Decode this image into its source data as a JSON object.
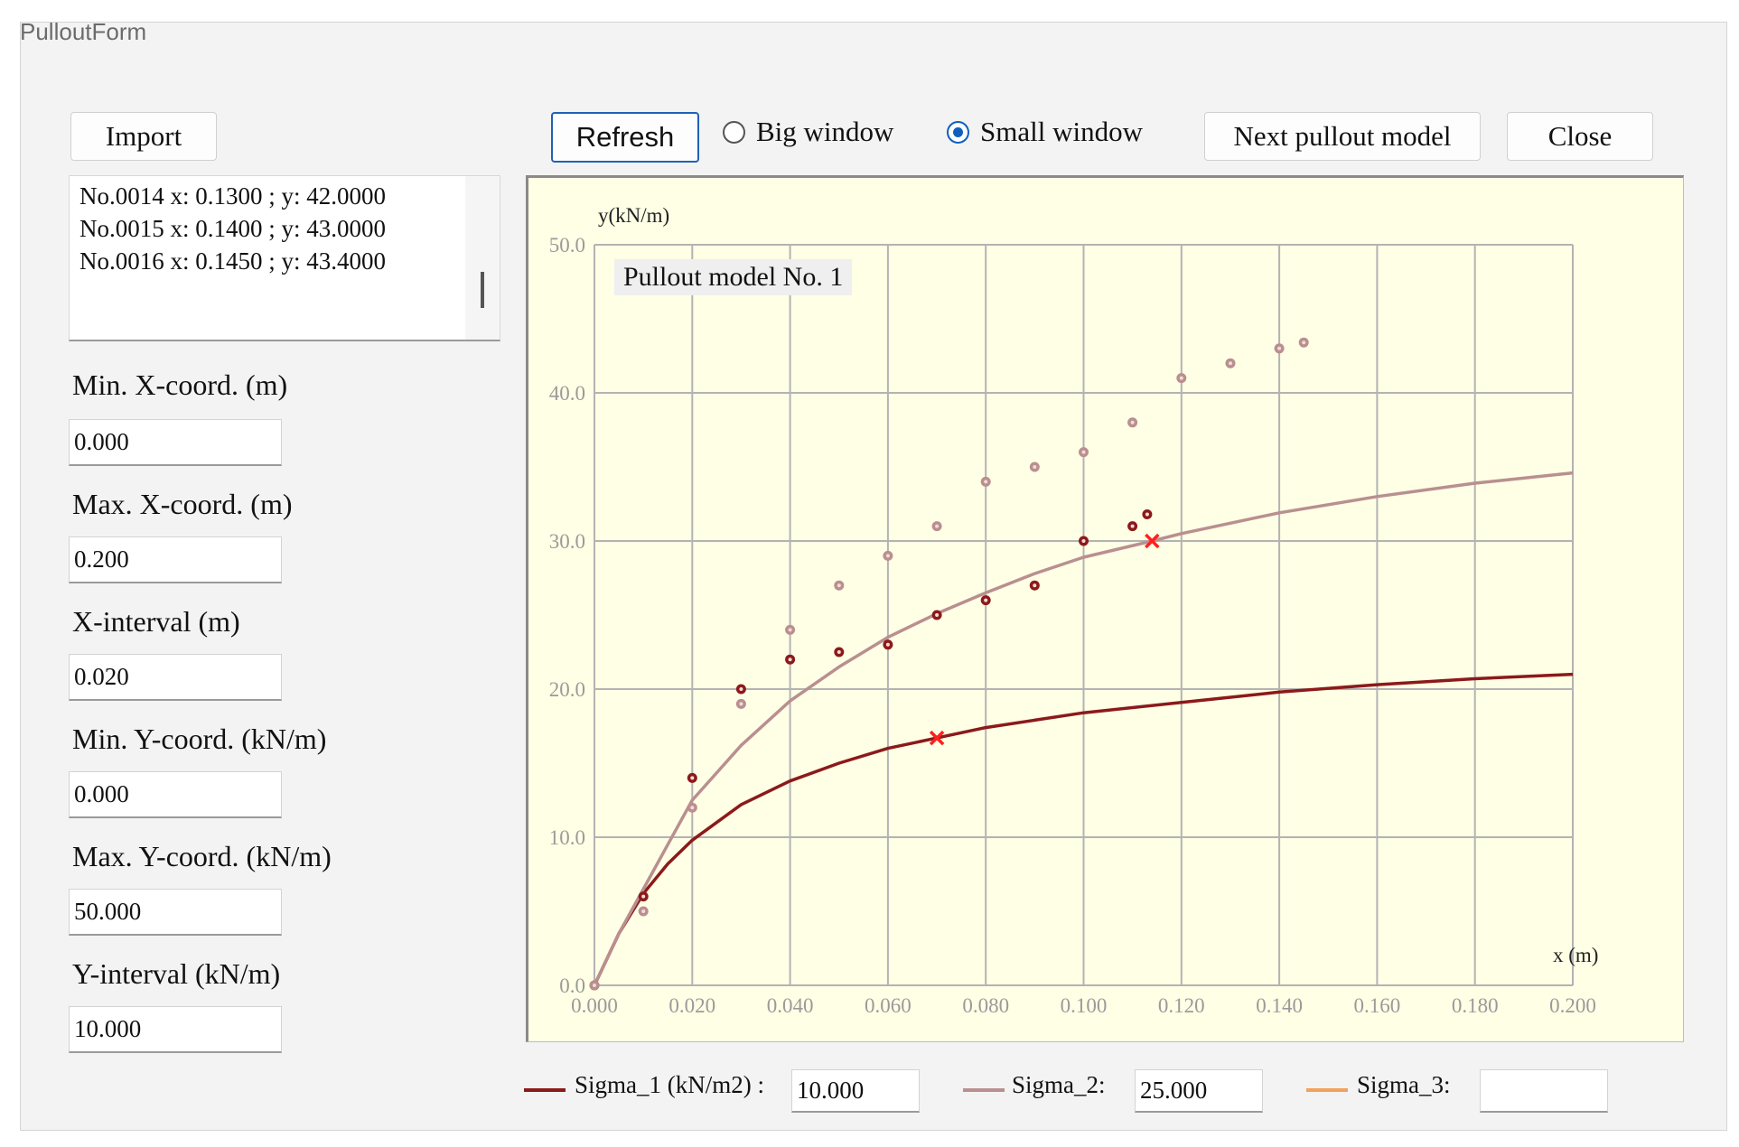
{
  "window": {
    "title": "PulloutForm"
  },
  "toolbar": {
    "import_label": "Import",
    "refresh_label": "Refresh",
    "big_window_label": "Big window",
    "small_window_label": "Small window",
    "selected_view": "Small window",
    "next_model_label": "Next pullout model",
    "close_label": "Close"
  },
  "data_list": {
    "lines": [
      "No.0014 x: 0.1300 ; y: 42.0000",
      "No.0015 x: 0.1400 ; y: 43.0000",
      "No.0016 x: 0.1450 ; y: 43.4000"
    ]
  },
  "settings": {
    "min_x_label": "Min. X-coord.  (m)",
    "min_x_value": "0.000",
    "max_x_label": "Max. X-coord.  (m)",
    "max_x_value": "0.200",
    "x_interval_label": "X-interval  (m)",
    "x_interval_value": "0.020",
    "min_y_label": "Min. Y-coord. (kN/m)",
    "min_y_value": "0.000",
    "max_y_label": "Max. Y-coord. (kN/m)",
    "max_y_value": "50.000",
    "y_interval_label": "Y-interval (kN/m)",
    "y_interval_value": "10.000"
  },
  "legend": {
    "sigma1_label": "Sigma_1 (kN/m2) :",
    "sigma1_value": "10.000",
    "sigma2_label": "Sigma_2:",
    "sigma2_value": "25.000",
    "sigma3_label": "Sigma_3:",
    "sigma3_value": ""
  },
  "colors": {
    "sigma1": "#8b1a1a",
    "sigma2": "#b98f8f",
    "sigma3": "#f2a25a",
    "peak_marker": "#ff1f1f",
    "chart_bg": "#ffffe6"
  },
  "chart_data": {
    "type": "scatter",
    "title": "Pullout model No. 1",
    "xlabel": "x (m)",
    "ylabel": "y(kN/m)",
    "xlim": [
      0,
      0.2
    ],
    "ylim": [
      0,
      50
    ],
    "grid": true,
    "x_ticks": [
      "0.000",
      "0.020",
      "0.040",
      "0.060",
      "0.080",
      "0.100",
      "0.120",
      "0.140",
      "0.160",
      "0.180",
      "0.200"
    ],
    "y_ticks": [
      "0.0",
      "10.0",
      "20.0",
      "30.0",
      "40.0",
      "50.0"
    ],
    "series": [
      {
        "legend_ref": "sigma1",
        "points": [
          [
            0,
            0
          ],
          [
            0.01,
            6
          ],
          [
            0.02,
            14
          ],
          [
            0.03,
            20
          ],
          [
            0.04,
            22
          ],
          [
            0.05,
            22.5
          ],
          [
            0.06,
            23
          ],
          [
            0.07,
            25
          ],
          [
            0.08,
            26
          ],
          [
            0.09,
            27
          ],
          [
            0.1,
            30
          ],
          [
            0.11,
            31
          ],
          [
            0.113,
            31.8
          ]
        ],
        "fit_curve": [
          [
            0,
            0
          ],
          [
            0.005,
            3.5
          ],
          [
            0.01,
            6.2
          ],
          [
            0.015,
            8.2
          ],
          [
            0.02,
            9.8
          ],
          [
            0.03,
            12.2
          ],
          [
            0.04,
            13.8
          ],
          [
            0.05,
            15
          ],
          [
            0.06,
            16
          ],
          [
            0.07,
            16.7
          ],
          [
            0.08,
            17.4
          ],
          [
            0.09,
            17.9
          ],
          [
            0.1,
            18.4
          ],
          [
            0.12,
            19.1
          ],
          [
            0.14,
            19.8
          ],
          [
            0.16,
            20.3
          ],
          [
            0.18,
            20.7
          ],
          [
            0.2,
            21
          ]
        ],
        "peak": [
          0.07,
          16.7
        ]
      },
      {
        "legend_ref": "sigma2",
        "points": [
          [
            0,
            0
          ],
          [
            0.01,
            5
          ],
          [
            0.02,
            12
          ],
          [
            0.03,
            19
          ],
          [
            0.04,
            24
          ],
          [
            0.05,
            27
          ],
          [
            0.06,
            29
          ],
          [
            0.07,
            31
          ],
          [
            0.08,
            34
          ],
          [
            0.09,
            35
          ],
          [
            0.1,
            36
          ],
          [
            0.11,
            38
          ],
          [
            0.12,
            41
          ],
          [
            0.13,
            42
          ],
          [
            0.14,
            43
          ],
          [
            0.145,
            43.4
          ]
        ],
        "fit_curve": [
          [
            0,
            0
          ],
          [
            0.005,
            3.5
          ],
          [
            0.01,
            6.5
          ],
          [
            0.015,
            9.5
          ],
          [
            0.02,
            12.5
          ],
          [
            0.03,
            16.2
          ],
          [
            0.04,
            19.2
          ],
          [
            0.05,
            21.5
          ],
          [
            0.06,
            23.5
          ],
          [
            0.07,
            25.1
          ],
          [
            0.08,
            26.5
          ],
          [
            0.09,
            27.8
          ],
          [
            0.1,
            28.9
          ],
          [
            0.114,
            30
          ],
          [
            0.12,
            30.5
          ],
          [
            0.14,
            31.9
          ],
          [
            0.16,
            33
          ],
          [
            0.18,
            33.9
          ],
          [
            0.2,
            34.6
          ]
        ],
        "peak": [
          0.114,
          30
        ]
      }
    ]
  }
}
